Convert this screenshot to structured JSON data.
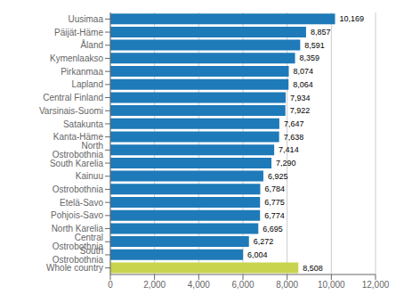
{
  "chart_data": {
    "type": "bar",
    "orientation": "horizontal",
    "categories": [
      "Whole country",
      "South Ostrobothnia",
      "Central Ostrobothnia",
      "North Karelia",
      "Pohjois-Savo",
      "Etelä-Savo",
      "Ostrobothnia",
      "Kainuu",
      "South Karelia",
      "North Ostrobothnia",
      "Kanta-Häme",
      "Satakunta",
      "Varsinais-Suomi",
      "Central Finland",
      "Lapland",
      "Pirkanmaa",
      "Kymenlaakso",
      "Åland",
      "Päijät-Häme",
      "Uusimaa"
    ],
    "values": [
      8508,
      6004,
      6272,
      6695,
      6774,
      6775,
      6784,
      6925,
      7290,
      7414,
      7638,
      7647,
      7922,
      7934,
      8064,
      8074,
      8359,
      8591,
      8857,
      10169
    ],
    "value_labels": [
      "8,508",
      "6,004",
      "6,272",
      "6,695",
      "6,774",
      "6,775",
      "6,784",
      "6,925",
      "7,290",
      "7,414",
      "7,638",
      "7,647",
      "7,922",
      "7,934",
      "8,064",
      "8,074",
      "8,359",
      "8,591",
      "8,857",
      "10,169"
    ],
    "data_labels": true,
    "colors": [
      "#c8d44e",
      "#1e7ab8",
      "#1e7ab8",
      "#1e7ab8",
      "#1e7ab8",
      "#1e7ab8",
      "#1e7ab8",
      "#1e7ab8",
      "#1e7ab8",
      "#1e7ab8",
      "#1e7ab8",
      "#1e7ab8",
      "#1e7ab8",
      "#1e7ab8",
      "#1e7ab8",
      "#1e7ab8",
      "#1e7ab8",
      "#1e7ab8",
      "#1e7ab8",
      "#1e7ab8"
    ],
    "xlim": [
      0,
      12000
    ],
    "xticks": [
      0,
      {
        "value": 2000,
        "label": "2,000"
      },
      {
        "value": 4000,
        "label": "4,000"
      },
      {
        "value": 6000,
        "label": "6,000"
      },
      {
        "value": 8000,
        "label": "8,000"
      },
      {
        "value": 10000,
        "label": "10,000"
      },
      {
        "value": 12000,
        "label": "12,000"
      }
    ],
    "grid": true
  }
}
